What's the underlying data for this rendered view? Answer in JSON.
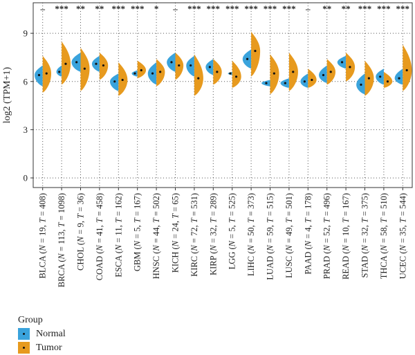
{
  "chart_data": {
    "type": "split-violin",
    "ylabel": "log2 (TPM+1)",
    "ylim": [
      -0.6,
      10.9
    ],
    "yticks": [
      0,
      3,
      6,
      9
    ],
    "grid": "dotted vertical and horizontal",
    "categories": [
      "BLCA (N = 19, T = 408)",
      "BRCA (N = 113, T = 1098)",
      "CHOL (N = 9, T = 36)",
      "COAD (N = 41, T = 458)",
      "ESCA (N = 11, T = 162)",
      "GBM (N = 5, T = 167)",
      "HNSC (N = 44, T = 502)",
      "KICH (N = 24, T = 65)",
      "KIRC (N = 72, T = 531)",
      "KIRP (N = 32, T = 289)",
      "LGG (N = 5, T = 525)",
      "LIHC (N = 50, T = 373)",
      "LUAD (N = 59, T = 515)",
      "LUSC (N = 49, T = 501)",
      "PAAD (N = 4, T = 178)",
      "PRAD (N = 52, T = 496)",
      "READ (N = 10, T = 167)",
      "STAD (N = 32, T = 375)",
      "THCA (N = 58, T = 510)",
      "UCEC (N = 35, T = 544)"
    ],
    "significance": [
      "–",
      "***",
      "**",
      "**",
      "***",
      "***",
      "*",
      "–",
      "***",
      "***",
      "***",
      "***",
      "***",
      "***",
      "–",
      "**",
      "**",
      "***",
      "***",
      "***"
    ],
    "series": [
      {
        "name": "Normal",
        "color": "#3aa3dc",
        "median": [
          6.4,
          6.6,
          7.2,
          7.1,
          6.0,
          6.5,
          6.5,
          7.2,
          7.0,
          6.9,
          6.5,
          7.4,
          5.9,
          5.9,
          6.0,
          6.4,
          7.2,
          5.8,
          6.3,
          6.2
        ],
        "min": [
          5.7,
          6.3,
          6.6,
          6.6,
          5.4,
          6.3,
          5.8,
          6.6,
          6.3,
          6.4,
          6.4,
          6.8,
          5.7,
          5.6,
          5.6,
          5.9,
          6.8,
          5.2,
          5.8,
          5.8
        ],
        "max": [
          7.0,
          7.0,
          7.8,
          7.6,
          6.5,
          6.7,
          7.2,
          7.8,
          7.6,
          7.4,
          6.6,
          8.0,
          6.1,
          6.2,
          6.5,
          7.0,
          7.6,
          6.5,
          6.8,
          6.8
        ],
        "width": [
          0.85,
          0.55,
          0.95,
          0.8,
          0.9,
          0.6,
          0.9,
          0.9,
          0.85,
          0.8,
          0.45,
          0.9,
          0.9,
          0.9,
          0.8,
          0.85,
          0.9,
          0.9,
          0.85,
          0.85
        ]
      },
      {
        "name": "Tumor",
        "color": "#e79a1e",
        "median": [
          6.5,
          7.1,
          6.8,
          7.0,
          6.1,
          6.7,
          6.6,
          7.0,
          6.2,
          6.6,
          6.3,
          7.9,
          6.5,
          6.6,
          6.1,
          6.6,
          6.9,
          6.2,
          6.0,
          6.7
        ],
        "min": [
          5.3,
          5.8,
          5.4,
          6.1,
          5.1,
          6.2,
          5.7,
          6.1,
          5.1,
          5.8,
          5.6,
          6.3,
          5.2,
          5.4,
          5.6,
          5.8,
          6.0,
          5.1,
          5.6,
          5.4
        ],
        "max": [
          7.6,
          8.5,
          8.1,
          7.8,
          7.2,
          7.3,
          7.4,
          7.8,
          7.7,
          7.4,
          7.3,
          9.1,
          7.7,
          7.8,
          6.8,
          7.4,
          7.8,
          7.3,
          6.6,
          8.3
        ],
        "width": [
          0.9,
          0.95,
          0.95,
          0.9,
          0.95,
          0.9,
          0.9,
          0.85,
          0.95,
          0.9,
          0.95,
          0.95,
          0.95,
          0.95,
          0.9,
          0.9,
          0.95,
          0.95,
          0.9,
          0.95
        ]
      }
    ],
    "legend": {
      "title": "Group",
      "position": "bottom-left",
      "items": [
        "Normal",
        "Tumor"
      ]
    }
  }
}
